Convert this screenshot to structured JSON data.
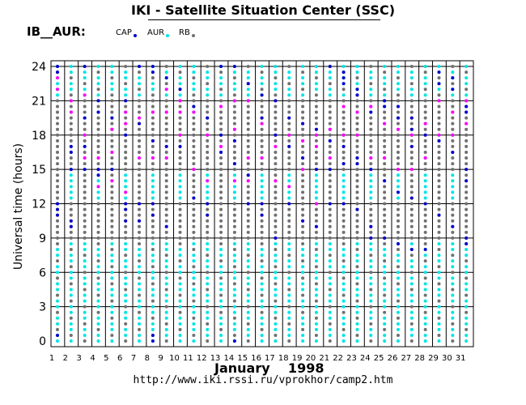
{
  "header": {
    "title": "IKI - Satellite Situation Center (SSC)",
    "panel_label": "IB__AUR:"
  },
  "legend": [
    {
      "label": "CAP",
      "color": "#0000cc"
    },
    {
      "label": "AUR",
      "color": "#00e5e5"
    },
    {
      "label": "RB",
      "color": "#707070"
    }
  ],
  "footer": {
    "url": "http://www.iki.rssi.ru/vprokhor/camp2.htm"
  },
  "chart_data": {
    "type": "scatter",
    "title": "IKI - Satellite Situation Center (SSC)",
    "xlabel": "January    1998",
    "ylabel": "Universal time  (hours)",
    "x_ticks": [
      1,
      2,
      3,
      4,
      5,
      6,
      7,
      8,
      9,
      10,
      11,
      12,
      13,
      14,
      15,
      16,
      17,
      18,
      19,
      20,
      21,
      22,
      23,
      24,
      25,
      26,
      27,
      28,
      29,
      30,
      31
    ],
    "y_ticks": [
      0,
      3,
      6,
      9,
      12,
      15,
      18,
      21,
      24
    ],
    "ylim": [
      0,
      24.5
    ],
    "xlim": [
      1,
      32
    ],
    "grid": true,
    "series": [
      {
        "name": "CAP",
        "color": "#0000cc",
        "points": [
          [
            1,
            24
          ],
          [
            1,
            23.5
          ],
          [
            1,
            12
          ],
          [
            1,
            11.5
          ],
          [
            1,
            11
          ],
          [
            1,
            0.5
          ],
          [
            2,
            17
          ],
          [
            2,
            16.5
          ],
          [
            2,
            15
          ],
          [
            2,
            10.5
          ],
          [
            2,
            10
          ],
          [
            3,
            24
          ],
          [
            3,
            19.5
          ],
          [
            3,
            17
          ],
          [
            3,
            15
          ],
          [
            4,
            21
          ],
          [
            4,
            20
          ],
          [
            4,
            15
          ],
          [
            4,
            14.5
          ],
          [
            5,
            19.5
          ],
          [
            5,
            15
          ],
          [
            6,
            21
          ],
          [
            6,
            18
          ],
          [
            6,
            12
          ],
          [
            6,
            11.5
          ],
          [
            6,
            10.5
          ],
          [
            7,
            24
          ],
          [
            7,
            19
          ],
          [
            7,
            12
          ],
          [
            7,
            10.5
          ],
          [
            8,
            24
          ],
          [
            8,
            23.5
          ],
          [
            8,
            17.5
          ],
          [
            8,
            12
          ],
          [
            8,
            11
          ],
          [
            8,
            0.5
          ],
          [
            8,
            0
          ],
          [
            9,
            23
          ],
          [
            9,
            17
          ],
          [
            9,
            10
          ],
          [
            10,
            22
          ],
          [
            10,
            17
          ],
          [
            11,
            20.5
          ],
          [
            11,
            12.5
          ],
          [
            12,
            19.5
          ],
          [
            12,
            12
          ],
          [
            12,
            11
          ],
          [
            13,
            24
          ],
          [
            13,
            18
          ],
          [
            13,
            16.5
          ],
          [
            14,
            24
          ],
          [
            14,
            17.5
          ],
          [
            14,
            15.5
          ],
          [
            14,
            0
          ],
          [
            15,
            22.5
          ],
          [
            15,
            14.5
          ],
          [
            15,
            12
          ],
          [
            16,
            21.5
          ],
          [
            16,
            19.5
          ],
          [
            16,
            12
          ],
          [
            16,
            11
          ],
          [
            17,
            21
          ],
          [
            17,
            18
          ],
          [
            17,
            9
          ],
          [
            18,
            19.5
          ],
          [
            18,
            17
          ],
          [
            18,
            12
          ],
          [
            19,
            19
          ],
          [
            19,
            16
          ],
          [
            19,
            10.5
          ],
          [
            20,
            18.5
          ],
          [
            20,
            15
          ],
          [
            20,
            10
          ],
          [
            21,
            24
          ],
          [
            21,
            17.5
          ],
          [
            21,
            15
          ],
          [
            21,
            12
          ],
          [
            22,
            23.5
          ],
          [
            22,
            23
          ],
          [
            22,
            22.5
          ],
          [
            22,
            17
          ],
          [
            22,
            15.5
          ],
          [
            22,
            12
          ],
          [
            23,
            22
          ],
          [
            23,
            21.5
          ],
          [
            23,
            16
          ],
          [
            23,
            15.5
          ],
          [
            23,
            11.5
          ],
          [
            24,
            20
          ],
          [
            24,
            15
          ],
          [
            24,
            10
          ],
          [
            24,
            9
          ],
          [
            25,
            21
          ],
          [
            25,
            20.5
          ],
          [
            25,
            14
          ],
          [
            25,
            9
          ],
          [
            26,
            20.5
          ],
          [
            26,
            19.5
          ],
          [
            26,
            13
          ],
          [
            26,
            8.5
          ],
          [
            27,
            19.5
          ],
          [
            27,
            18.5
          ],
          [
            27,
            17
          ],
          [
            27,
            12.5
          ],
          [
            27,
            8
          ],
          [
            28,
            18
          ],
          [
            28,
            12
          ],
          [
            28,
            8
          ],
          [
            29,
            23.5
          ],
          [
            29,
            22.5
          ],
          [
            29,
            17.5
          ],
          [
            29,
            11
          ],
          [
            30,
            23
          ],
          [
            30,
            22
          ],
          [
            30,
            16.5
          ],
          [
            30,
            10
          ],
          [
            31,
            20.5
          ],
          [
            31,
            20
          ],
          [
            31,
            15
          ],
          [
            31,
            14
          ],
          [
            31,
            9
          ],
          [
            31,
            8.5
          ]
        ]
      },
      {
        "name": "AUR",
        "color": "#00e5e5",
        "points": []
      },
      {
        "name": "RB",
        "color": "#707070",
        "points": []
      },
      {
        "name": "",
        "color": "#ff00ff",
        "points": [
          [
            1,
            23
          ],
          [
            1,
            22
          ],
          [
            2,
            21
          ],
          [
            2,
            20
          ],
          [
            3,
            21.5
          ],
          [
            3,
            18
          ],
          [
            3,
            16
          ],
          [
            4,
            16
          ],
          [
            4,
            13.5
          ],
          [
            5,
            18.5
          ],
          [
            5,
            16.5
          ],
          [
            5,
            14
          ],
          [
            6,
            20
          ],
          [
            6,
            19
          ],
          [
            6,
            13
          ],
          [
            7,
            19.5
          ],
          [
            7,
            16
          ],
          [
            8,
            20
          ],
          [
            8,
            16
          ],
          [
            9,
            22
          ],
          [
            9,
            20
          ],
          [
            9,
            16
          ],
          [
            10,
            21
          ],
          [
            10,
            20
          ],
          [
            10,
            18
          ],
          [
            11,
            20
          ],
          [
            11,
            15
          ],
          [
            12,
            18
          ],
          [
            12,
            14
          ],
          [
            13,
            20.5
          ],
          [
            13,
            17
          ],
          [
            14,
            21
          ],
          [
            14,
            18.5
          ],
          [
            14,
            14
          ],
          [
            15,
            21
          ],
          [
            15,
            16
          ],
          [
            15,
            14
          ],
          [
            16,
            19
          ],
          [
            16,
            16
          ],
          [
            17,
            17
          ],
          [
            17,
            14
          ],
          [
            18,
            18
          ],
          [
            18,
            13.5
          ],
          [
            19,
            17.5
          ],
          [
            19,
            15
          ],
          [
            20,
            18
          ],
          [
            20,
            17
          ],
          [
            20,
            12
          ],
          [
            21,
            18.5
          ],
          [
            21,
            16
          ],
          [
            22,
            20.5
          ],
          [
            22,
            18
          ],
          [
            23,
            20
          ],
          [
            23,
            18
          ],
          [
            24,
            20.5
          ],
          [
            24,
            16
          ],
          [
            25,
            19
          ],
          [
            25,
            16
          ],
          [
            26,
            18.5
          ],
          [
            26,
            15
          ],
          [
            27,
            18
          ],
          [
            27,
            15
          ],
          [
            28,
            19
          ],
          [
            28,
            16
          ],
          [
            29,
            21
          ],
          [
            29,
            18
          ],
          [
            30,
            20
          ],
          [
            30,
            18
          ],
          [
            31,
            21
          ],
          [
            31,
            19
          ]
        ]
      }
    ]
  }
}
